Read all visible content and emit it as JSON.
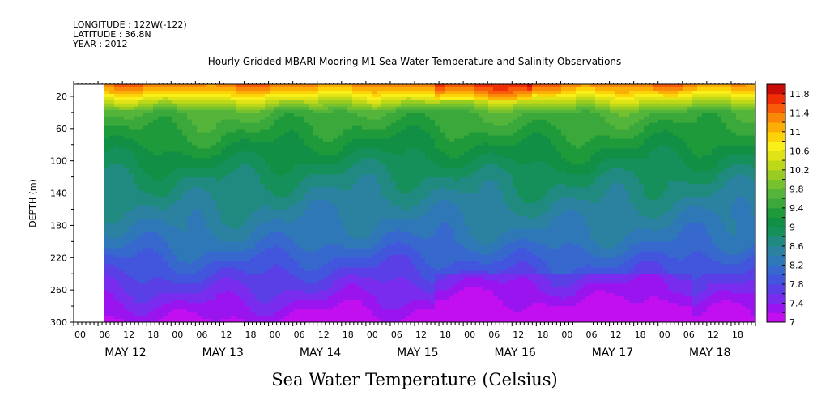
{
  "header": {
    "longitude": "LONGITUDE : 122W(-122)",
    "latitude": "LATITUDE : 36.8N",
    "year": "YEAR : 2012"
  },
  "chart_data": {
    "type": "heatmap",
    "title": "Hourly Gridded MBARI Mooring M1 Sea Water Temperature and Salinity Observations",
    "xlabel": "",
    "ylabel": "DEPTH (m)",
    "caption": "Sea Water Temperature (Celsius)",
    "y_axis": {
      "range": [
        300,
        5
      ],
      "ticks": [
        20,
        60,
        100,
        140,
        180,
        220,
        260,
        300
      ],
      "reversed": true
    },
    "x_axis": {
      "hour_ticks": [
        "00",
        "06",
        "12",
        "18",
        "00",
        "06",
        "12",
        "18",
        "00",
        "06",
        "12",
        "18",
        "00",
        "06",
        "12",
        "18",
        "00",
        "06",
        "12",
        "18",
        "00",
        "06",
        "12",
        "18",
        "00",
        "06",
        "12",
        "18"
      ],
      "hours_start_day": "MAY 12",
      "day_labels": [
        "MAY 12",
        "MAY 13",
        "MAY 14",
        "MAY 15",
        "MAY 16",
        "MAY 17",
        "MAY 18"
      ],
      "data_start": "MAY 12 06:00",
      "data_end": "MAY 18 24:00"
    },
    "colorbar": {
      "levels": [
        7,
        7.2,
        7.4,
        7.6,
        7.8,
        8,
        8.2,
        8.4,
        8.6,
        8.8,
        9,
        9.2,
        9.4,
        9.6,
        9.8,
        10,
        10.2,
        10.4,
        10.6,
        10.8,
        11,
        11.2,
        11.4,
        11.6,
        11.8,
        12
      ],
      "labels": [
        "7",
        "7.4",
        "7.8",
        "8.2",
        "8.6",
        "9",
        "9.4",
        "9.8",
        "10.2",
        "10.6",
        "11",
        "11.4",
        "11.8"
      ],
      "colors": [
        "#c20ff0",
        "#9a14f0",
        "#7a2cee",
        "#5a3ee6",
        "#4256dd",
        "#3768cd",
        "#2f78b8",
        "#2a82a0",
        "#218a80",
        "#16905a",
        "#118f44",
        "#1e9a3a",
        "#3aa83a",
        "#55b53a",
        "#76c22e",
        "#98cc22",
        "#bcd818",
        "#e0e416",
        "#f8f018",
        "#fcd208",
        "#fbae06",
        "#fa8808",
        "#f85a08",
        "#ef2e06",
        "#c80c08"
      ]
    },
    "grid": false
  }
}
